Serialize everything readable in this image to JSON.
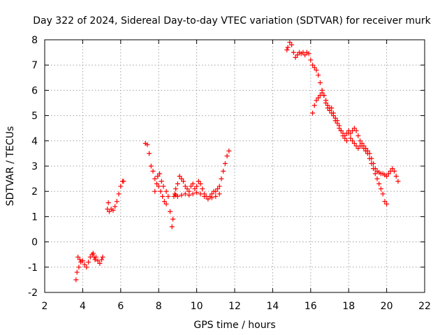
{
  "chart_data": {
    "type": "scatter",
    "title": "Day 322 of 2024, Sidereal Day-to-day VTEC variation (SDTVAR) for receiver murk",
    "xlabel": "GPS time / hours",
    "ylabel": "SDTVAR / TECUs",
    "xlim": [
      2,
      22
    ],
    "ylim": [
      -2,
      8
    ],
    "xticks": [
      "2",
      "4",
      "6",
      "8",
      "10",
      "12",
      "14",
      "16",
      "18",
      "20",
      "22"
    ],
    "yticks": [
      "-2",
      "-1",
      "0",
      "1",
      "2",
      "3",
      "4",
      "5",
      "6",
      "7",
      "8"
    ],
    "grid": true,
    "marker": "+",
    "color": "#ff0000",
    "series": [
      {
        "name": "SDTVAR",
        "x": [
          3.65,
          3.7,
          3.75,
          3.8,
          3.85,
          3.9,
          4.0,
          4.1,
          4.2,
          4.3,
          4.4,
          4.5,
          4.55,
          4.6,
          4.65,
          4.7,
          4.8,
          4.9,
          5.0,
          5.05,
          5.3,
          5.35,
          5.4,
          5.5,
          5.6,
          5.7,
          5.8,
          5.9,
          6.0,
          6.1,
          6.15,
          7.3,
          7.4,
          7.5,
          7.6,
          7.7,
          7.8,
          7.9,
          8.0,
          8.1,
          8.2,
          8.3,
          8.4,
          7.8,
          7.95,
          8.05,
          8.15,
          8.25,
          8.4,
          8.5,
          8.6,
          8.7,
          8.75,
          8.8,
          8.85,
          8.9,
          8.9,
          9.0,
          9.1,
          9.2,
          9.3,
          9.4,
          9.5,
          9.6,
          9.7,
          9.8,
          9.9,
          10.0,
          10.1,
          10.2,
          10.3,
          10.4,
          10.5,
          10.6,
          10.7,
          10.8,
          10.9,
          11.0,
          11.1,
          9.0,
          9.2,
          9.4,
          9.6,
          9.8,
          10.0,
          10.2,
          10.4,
          10.6,
          10.8,
          11.0,
          11.2,
          11.2,
          11.3,
          11.4,
          11.5,
          11.6,
          11.7,
          14.75,
          14.8,
          14.9,
          15.0,
          15.1,
          15.2,
          15.3,
          15.4,
          15.5,
          15.6,
          15.7,
          15.8,
          15.9,
          16.0,
          16.1,
          16.2,
          16.3,
          16.4,
          16.5,
          16.6,
          16.7,
          16.8,
          16.9,
          17.0,
          17.1,
          17.2,
          17.3,
          17.4,
          17.5,
          17.6,
          17.7,
          17.8,
          17.9,
          18.0,
          18.1,
          18.2,
          18.3,
          18.4,
          18.5,
          18.6,
          18.7,
          18.8,
          18.9,
          19.0,
          19.1,
          19.2,
          19.3,
          19.4,
          19.5,
          19.6,
          19.7,
          19.8,
          19.9,
          20.0,
          20.1,
          20.2,
          20.3,
          20.4,
          20.5,
          20.6,
          16.1,
          16.2,
          16.3,
          16.4,
          16.5,
          16.6,
          16.7,
          16.8,
          16.9,
          17.0,
          17.1,
          17.2,
          17.3,
          17.4,
          17.5,
          17.6,
          17.7,
          17.8,
          17.9,
          18.0,
          18.1,
          18.2,
          18.3,
          18.4,
          18.5,
          18.6,
          18.7,
          18.8,
          18.9,
          19.0,
          19.1,
          19.2,
          19.3,
          19.4,
          19.5,
          19.6,
          19.7,
          19.8,
          19.9,
          20.0
        ],
        "y": [
          -1.5,
          -1.2,
          -0.6,
          -1.0,
          -0.7,
          -0.8,
          -0.75,
          -0.9,
          -1.0,
          -0.8,
          -0.6,
          -0.5,
          -0.45,
          -0.6,
          -0.7,
          -0.6,
          -0.75,
          -0.85,
          -0.7,
          -0.6,
          1.3,
          1.55,
          1.2,
          1.3,
          1.25,
          1.4,
          1.6,
          1.9,
          2.2,
          2.4,
          2.4,
          3.9,
          3.85,
          3.5,
          3.0,
          2.8,
          2.5,
          2.3,
          2.2,
          2.0,
          1.8,
          1.6,
          1.5,
          2.0,
          2.6,
          2.7,
          2.4,
          2.2,
          2.0,
          1.8,
          1.2,
          0.6,
          0.9,
          1.8,
          1.9,
          1.85,
          2.1,
          2.3,
          2.6,
          2.5,
          2.4,
          2.2,
          2.1,
          2.0,
          2.2,
          2.3,
          2.1,
          2.2,
          2.4,
          2.3,
          2.1,
          1.9,
          1.8,
          1.7,
          1.8,
          1.9,
          2.0,
          2.0,
          2.1,
          1.8,
          1.85,
          1.9,
          1.85,
          1.9,
          1.95,
          1.9,
          1.8,
          1.7,
          1.75,
          1.8,
          1.9,
          2.2,
          2.5,
          2.8,
          3.1,
          3.4,
          3.6,
          7.6,
          7.7,
          7.9,
          7.8,
          7.5,
          7.3,
          7.4,
          7.5,
          7.45,
          7.5,
          7.4,
          7.5,
          7.45,
          7.2,
          7.0,
          6.9,
          6.8,
          6.6,
          6.3,
          6.0,
          5.8,
          5.6,
          5.4,
          5.3,
          5.3,
          5.1,
          4.9,
          4.8,
          4.6,
          4.4,
          4.3,
          4.2,
          4.3,
          4.4,
          4.3,
          4.4,
          4.5,
          4.4,
          4.2,
          4.0,
          3.9,
          3.8,
          3.7,
          3.6,
          3.5,
          3.3,
          3.1,
          2.9,
          2.8,
          2.75,
          2.7,
          2.7,
          2.65,
          2.6,
          2.7,
          2.8,
          2.9,
          2.8,
          2.6,
          2.4,
          5.1,
          5.4,
          5.6,
          5.7,
          5.8,
          5.9,
          5.8,
          5.5,
          5.3,
          5.2,
          5.1,
          5.0,
          4.8,
          4.7,
          4.5,
          4.4,
          4.2,
          4.1,
          4.0,
          4.3,
          4.1,
          4.0,
          3.9,
          3.8,
          3.7,
          3.8,
          3.8,
          3.7,
          3.6,
          3.5,
          3.3,
          3.1,
          2.9,
          2.7,
          2.5,
          2.3,
          2.1,
          1.9,
          1.6,
          1.5
        ]
      }
    ]
  }
}
